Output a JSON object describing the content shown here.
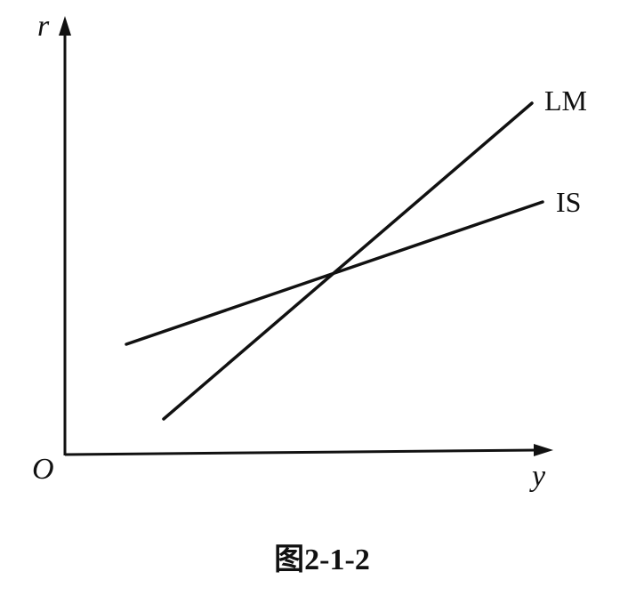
{
  "figure": {
    "caption": "图2-1-2",
    "origin_label": "O",
    "x_axis_label": "y",
    "y_axis_label": "r"
  },
  "curves": [
    {
      "id": "lm",
      "label": "LM"
    },
    {
      "id": "is",
      "label": "IS"
    }
  ],
  "colors": {
    "stroke": "#111111",
    "background": "#ffffff"
  }
}
